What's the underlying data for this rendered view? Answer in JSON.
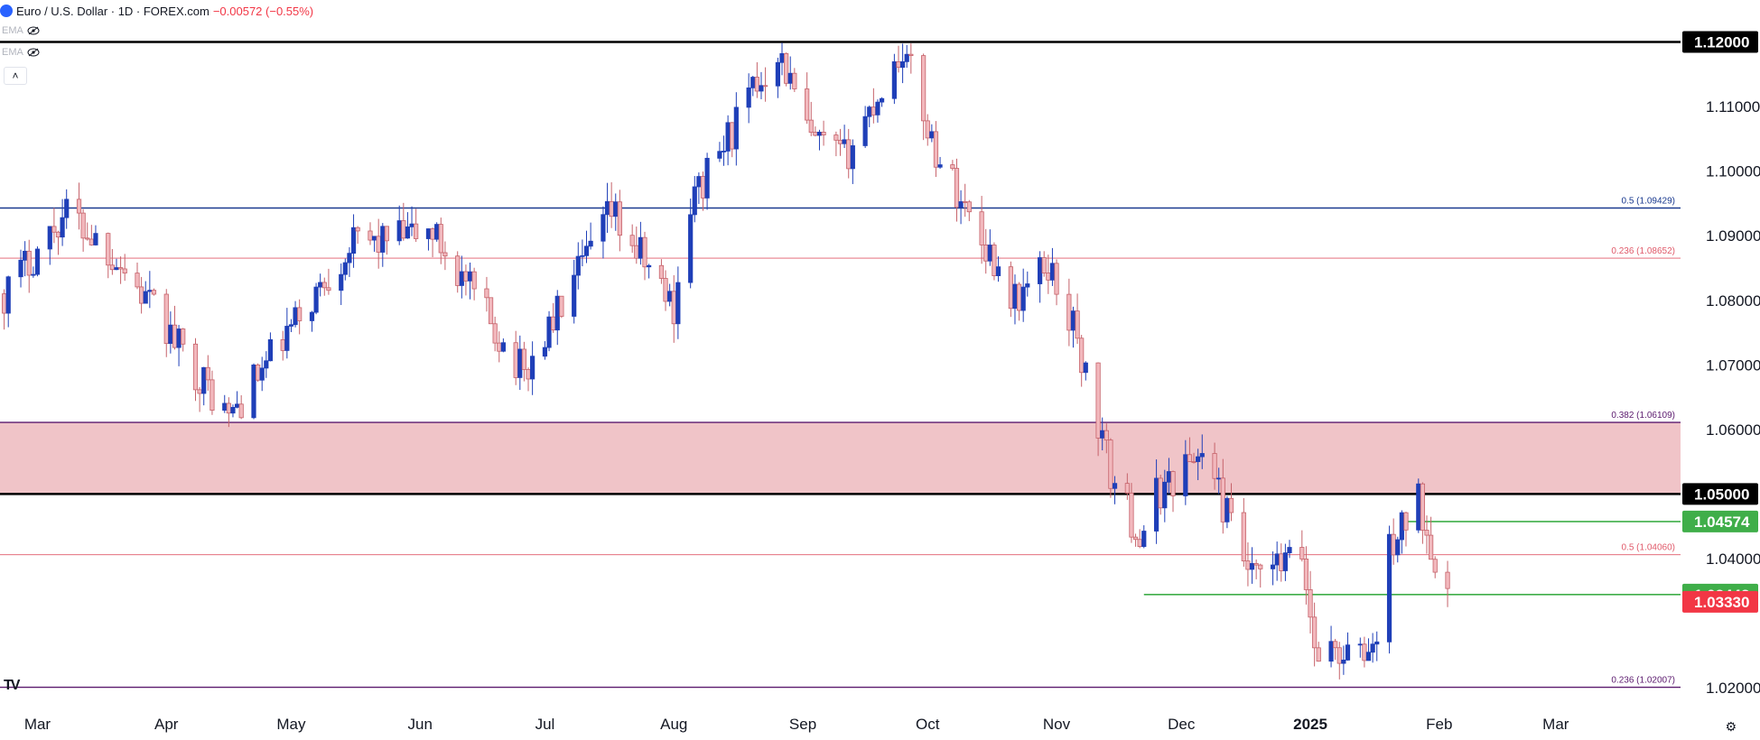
{
  "header": {
    "symbol_title": "Euro / U.S. Dollar · 1D · FOREX.com",
    "change": "−0.00572 (−0.55%)"
  },
  "indicators": [
    {
      "label": "EMA",
      "icon": "hidden-eye-icon"
    },
    {
      "label": "EMA",
      "icon": "hidden-eye-icon"
    }
  ],
  "colors": {
    "up": "#1f3fb8",
    "down": "#c6626a",
    "zone_fill": "#f0c4c8",
    "grid_line_dark": "#000000",
    "fib_blue": "#1a3a8f",
    "fib_red": "#e05a6a",
    "fib_purple": "#5b1a6e",
    "support_green": "#3fae49",
    "price_red": "#f23645"
  },
  "chart_data": {
    "type": "candlestick",
    "title": "Euro / U.S. Dollar · 1D · FOREX.com",
    "y_range": [
      1.0175,
      1.1265
    ],
    "y_ticks": [
      "1.11000",
      "1.10000",
      "1.09000",
      "1.08000",
      "1.07000",
      "1.06000",
      "1.04000",
      "1.02000"
    ],
    "x_ticks": [
      "Mar",
      "Apr",
      "May",
      "Jun",
      "Jul",
      "Aug",
      "Sep",
      "Oct",
      "Nov",
      "Dec",
      "2025",
      "Feb",
      "Mar"
    ],
    "x_tick_dates": [
      "2024-03-01",
      "2024-04-01",
      "2024-05-01",
      "2024-06-01",
      "2024-07-01",
      "2024-08-01",
      "2024-09-01",
      "2024-10-01",
      "2024-11-01",
      "2024-12-01",
      "2025-01-01",
      "2025-02-01",
      "2025-03-01"
    ],
    "x_range": [
      "2024-02-21",
      "2025-03-31"
    ],
    "grid": false,
    "horizontal_levels": [
      {
        "price": 1.12,
        "label": "1.12000",
        "style": "black-thick"
      },
      {
        "price": 1.05,
        "label": "1.05000",
        "style": "black-thick"
      },
      {
        "price": 1.09429,
        "label": "0.5 (1.09429)",
        "style": "blue"
      },
      {
        "price": 1.08652,
        "label": "0.236 (1.08652)",
        "style": "red"
      },
      {
        "price": 1.06109,
        "label": "0.382 (1.06109)",
        "style": "purple"
      },
      {
        "price": 1.0406,
        "label": "0.5 (1.04060)",
        "style": "red"
      },
      {
        "price": 1.02007,
        "label": "0.236 (1.02007)",
        "style": "purple"
      }
    ],
    "zone": {
      "from": 1.05,
      "to": 1.06109
    },
    "price_badges": [
      {
        "price": 1.12,
        "label": "1.12000",
        "color": "#000000"
      },
      {
        "price": 1.05,
        "label": "1.05000",
        "color": "#000000"
      },
      {
        "price": 1.04574,
        "label": "1.04574",
        "color": "#3fae49"
      },
      {
        "price": 1.03443,
        "label": "1.03443",
        "color": "#3fae49"
      },
      {
        "price": 1.0333,
        "label": "1.03330",
        "color": "#f23645"
      }
    ],
    "support_lines": [
      {
        "price": 1.04574,
        "start_date": "2025-01-24"
      },
      {
        "price": 1.03443,
        "start_date": "2024-11-22"
      }
    ],
    "anchors": [
      {
        "date": "2024-02-22",
        "close": 1.081
      },
      {
        "date": "2024-03-08",
        "close": 1.0938
      },
      {
        "date": "2024-03-20",
        "close": 1.0865
      },
      {
        "date": "2024-04-16",
        "close": 1.0618
      },
      {
        "date": "2024-05-15",
        "close": 1.0885
      },
      {
        "date": "2024-06-04",
        "close": 1.0905
      },
      {
        "date": "2024-06-26",
        "close": 1.0685
      },
      {
        "date": "2024-07-17",
        "close": 1.0935
      },
      {
        "date": "2024-08-01",
        "close": 1.079
      },
      {
        "date": "2024-08-05",
        "close": 1.0948
      },
      {
        "date": "2024-08-26",
        "close": 1.119
      },
      {
        "date": "2024-09-03",
        "close": 1.1045
      },
      {
        "date": "2024-09-11",
        "close": 1.102
      },
      {
        "date": "2024-09-25",
        "close": 1.119
      },
      {
        "date": "2024-10-03",
        "close": 1.103
      },
      {
        "date": "2024-10-22",
        "close": 1.08
      },
      {
        "date": "2024-10-30",
        "close": 1.0855
      },
      {
        "date": "2024-11-05",
        "close": 1.076
      },
      {
        "date": "2024-11-14",
        "close": 1.053
      },
      {
        "date": "2024-11-22",
        "close": 1.0418
      },
      {
        "date": "2024-11-25",
        "close": 1.05
      },
      {
        "date": "2024-12-06",
        "close": 1.0568
      },
      {
        "date": "2024-12-18",
        "close": 1.0365
      },
      {
        "date": "2024-12-30",
        "close": 1.0405
      },
      {
        "date": "2025-01-02",
        "close": 1.0265
      },
      {
        "date": "2025-01-13",
        "close": 1.0245
      },
      {
        "date": "2025-01-17",
        "close": 1.0275
      },
      {
        "date": "2025-01-20",
        "close": 1.0415
      },
      {
        "date": "2025-01-27",
        "close": 1.049
      },
      {
        "date": "2025-02-03",
        "close": 1.0345
      }
    ]
  },
  "corner": {
    "tv_logo": "TV",
    "settings_icon": "gear-icon"
  }
}
